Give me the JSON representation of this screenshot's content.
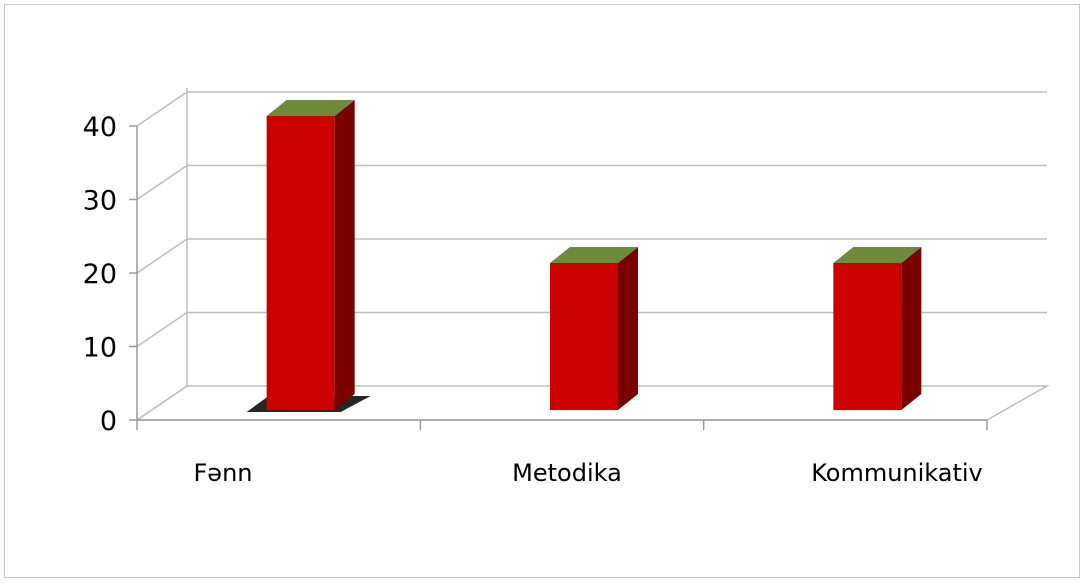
{
  "chart_data": {
    "type": "bar",
    "categories": [
      "Fənn",
      "Metodika",
      "Kommunikativ"
    ],
    "values": [
      40,
      20,
      20
    ],
    "ylim": [
      0,
      40
    ],
    "yticks": [
      "0",
      "10",
      "20",
      "30",
      "40"
    ],
    "grid": true,
    "legend": "none",
    "three_d": true,
    "colors": {
      "bar_front": "#cc0000",
      "bar_side": "#7a0000",
      "bar_top": "#6e8a3a"
    }
  }
}
